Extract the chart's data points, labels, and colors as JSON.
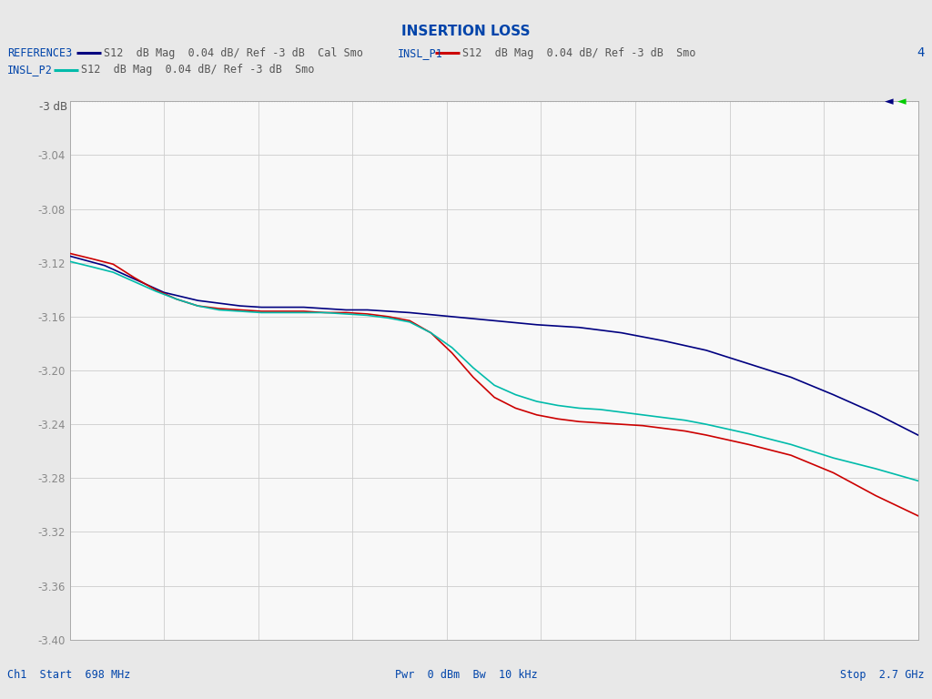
{
  "title": "INSERTION LOSS",
  "title_color": "#0044AA",
  "title_fontsize": 11,
  "bg_color": "#E8E8E8",
  "plot_bg_color": "#F8F8F8",
  "grid_color": "#CCCCCC",
  "ref_line_y": -3.0,
  "ref_line_label": "-3 dB",
  "ylim": [
    -3.4,
    -3.0
  ],
  "yticks": [
    -3.4,
    -3.36,
    -3.32,
    -3.28,
    -3.24,
    -3.2,
    -3.16,
    -3.12,
    -3.08,
    -3.04
  ],
  "xstart_ghz": 0.698,
  "xstop_ghz": 2.7,
  "xlabel_start": "Ch1  Start  698 MHz",
  "xlabel_center": "Pwr  0 dBm  Bw  10 kHz",
  "xlabel_stop": "Stop  2.7 GHz",
  "legend": [
    {
      "label": "REFERENCE3",
      "desc": "S12  dB Mag  0.04 dB/ Ref -3 dB  Cal Smo",
      "color": "#000080"
    },
    {
      "label": "INSL_P1",
      "desc": "S12  dB Mag  0.04 dB/ Ref -3 dB  Smo",
      "color": "#CC0000"
    },
    {
      "label": "INSL_P2",
      "desc": "S12  dB Mag  0.04 dB/ Ref -3 dB  Smo",
      "color": "#00BBAA"
    }
  ],
  "corner_label": "4",
  "trace_reference3": {
    "color": "#000080",
    "lw": 1.2,
    "x": [
      0.698,
      0.78,
      0.85,
      0.92,
      1.0,
      1.05,
      1.1,
      1.15,
      1.2,
      1.25,
      1.3,
      1.35,
      1.4,
      1.5,
      1.6,
      1.7,
      1.8,
      1.9,
      2.0,
      2.1,
      2.2,
      2.3,
      2.4,
      2.5,
      2.6,
      2.7
    ],
    "y": [
      -3.115,
      -3.122,
      -3.132,
      -3.142,
      -3.148,
      -3.15,
      -3.152,
      -3.153,
      -3.153,
      -3.153,
      -3.154,
      -3.155,
      -3.155,
      -3.157,
      -3.16,
      -3.163,
      -3.166,
      -3.168,
      -3.172,
      -3.178,
      -3.185,
      -3.195,
      -3.205,
      -3.218,
      -3.232,
      -3.248
    ]
  },
  "trace_insl_p1": {
    "color": "#CC0000",
    "lw": 1.2,
    "x": [
      0.698,
      0.75,
      0.8,
      0.85,
      0.9,
      0.95,
      1.0,
      1.05,
      1.1,
      1.15,
      1.2,
      1.25,
      1.3,
      1.35,
      1.4,
      1.45,
      1.5,
      1.55,
      1.6,
      1.65,
      1.7,
      1.75,
      1.8,
      1.85,
      1.9,
      1.95,
      2.0,
      2.05,
      2.1,
      2.15,
      2.2,
      2.3,
      2.4,
      2.5,
      2.6,
      2.7
    ],
    "y": [
      -3.113,
      -3.117,
      -3.121,
      -3.131,
      -3.14,
      -3.147,
      -3.152,
      -3.154,
      -3.155,
      -3.156,
      -3.156,
      -3.156,
      -3.157,
      -3.157,
      -3.158,
      -3.16,
      -3.163,
      -3.172,
      -3.187,
      -3.205,
      -3.22,
      -3.228,
      -3.233,
      -3.236,
      -3.238,
      -3.239,
      -3.24,
      -3.241,
      -3.243,
      -3.245,
      -3.248,
      -3.255,
      -3.263,
      -3.276,
      -3.293,
      -3.308
    ]
  },
  "trace_insl_p2": {
    "color": "#00BBAA",
    "lw": 1.2,
    "x": [
      0.698,
      0.75,
      0.8,
      0.85,
      0.9,
      0.95,
      1.0,
      1.05,
      1.1,
      1.15,
      1.2,
      1.25,
      1.3,
      1.35,
      1.4,
      1.45,
      1.5,
      1.55,
      1.6,
      1.65,
      1.7,
      1.75,
      1.8,
      1.85,
      1.9,
      1.95,
      2.0,
      2.05,
      2.1,
      2.15,
      2.2,
      2.3,
      2.4,
      2.5,
      2.6,
      2.7
    ],
    "y": [
      -3.119,
      -3.123,
      -3.127,
      -3.134,
      -3.141,
      -3.147,
      -3.152,
      -3.155,
      -3.156,
      -3.157,
      -3.157,
      -3.157,
      -3.157,
      -3.158,
      -3.159,
      -3.161,
      -3.164,
      -3.172,
      -3.183,
      -3.198,
      -3.211,
      -3.218,
      -3.223,
      -3.226,
      -3.228,
      -3.229,
      -3.231,
      -3.233,
      -3.235,
      -3.237,
      -3.24,
      -3.247,
      -3.255,
      -3.265,
      -3.273,
      -3.282
    ]
  }
}
